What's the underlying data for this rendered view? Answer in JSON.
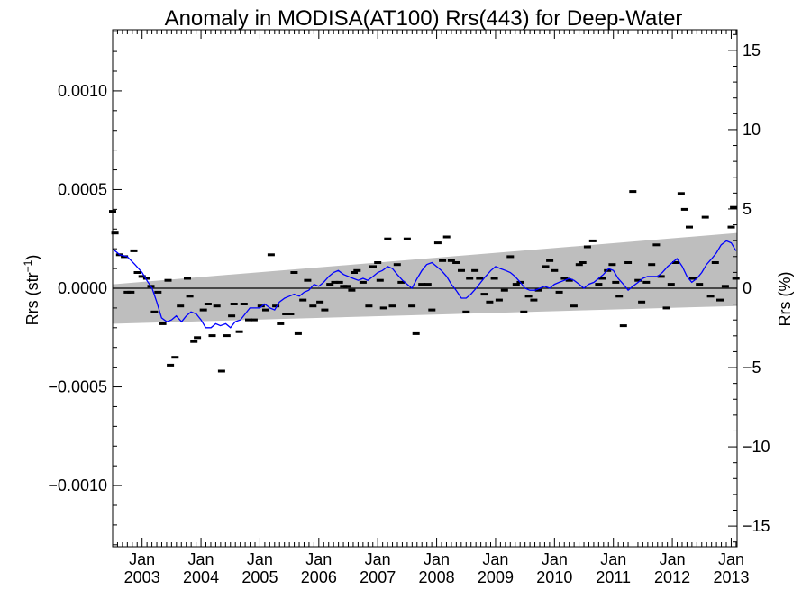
{
  "chart_data": {
    "type": "scatter",
    "title": "Anomaly in MODISA(AT100) Rrs(443) for Deep-Water",
    "ylabel": "Rrs (str⁻¹)",
    "ylabel_base": "Rrs (str",
    "ylabel_sup": "−1",
    "ylabel_end": ")",
    "y2label": "Rrs (%)",
    "xlim": [
      2002.5,
      2013.1
    ],
    "ylim": [
      -0.00131,
      0.00131
    ],
    "y2lim": [
      -16.3,
      16.3
    ],
    "yticks": [
      {
        "value": 0.001,
        "label": "0.0010"
      },
      {
        "value": 0.0005,
        "label": "0.0005"
      },
      {
        "value": 0.0,
        "label": "0.0000"
      },
      {
        "value": -0.0005,
        "label": "−0.0005"
      },
      {
        "value": -0.001,
        "label": "−0.0010"
      }
    ],
    "y2ticks": [
      {
        "value": 15,
        "label": "15"
      },
      {
        "value": 10,
        "label": "10"
      },
      {
        "value": 5,
        "label": "5"
      },
      {
        "value": 0,
        "label": "0"
      },
      {
        "value": -5,
        "label": "−5"
      },
      {
        "value": -10,
        "label": "−10"
      },
      {
        "value": -15,
        "label": "−15"
      }
    ],
    "xticks": [
      {
        "value": 2003.0,
        "month": "Jan",
        "year": "2003"
      },
      {
        "value": 2004.0,
        "month": "Jan",
        "year": "2004"
      },
      {
        "value": 2005.0,
        "month": "Jan",
        "year": "2005"
      },
      {
        "value": 2006.0,
        "month": "Jan",
        "year": "2006"
      },
      {
        "value": 2007.0,
        "month": "Jan",
        "year": "2007"
      },
      {
        "value": 2008.0,
        "month": "Jan",
        "year": "2008"
      },
      {
        "value": 2009.0,
        "month": "Jan",
        "year": "2009"
      },
      {
        "value": 2010.0,
        "month": "Jan",
        "year": "2010"
      },
      {
        "value": 2011.0,
        "month": "Jan",
        "year": "2011"
      },
      {
        "value": 2012.0,
        "month": "Jan",
        "year": "2012"
      },
      {
        "value": 2013.0,
        "month": "Jan",
        "year": "2013"
      }
    ],
    "band": {
      "x": [
        2002.5,
        2013.1
      ],
      "upper": [
        2e-05,
        0.00028
      ],
      "lower": [
        -0.00018,
        -9e-05
      ]
    },
    "zero_line": 0,
    "points": [
      [
        2002.5,
        0.00039
      ],
      [
        2002.54,
        0.00028
      ],
      [
        2002.62,
        0.00017
      ],
      [
        2002.7,
        0.00016
      ],
      [
        2002.75,
        -2e-05
      ],
      [
        2002.81,
        -2e-05
      ],
      [
        2002.86,
        0.00019
      ],
      [
        2002.92,
        8e-05
      ],
      [
        2003.0,
        6e-05
      ],
      [
        2003.08,
        5e-05
      ],
      [
        2003.15,
        1e-05
      ],
      [
        2003.21,
        -0.00012
      ],
      [
        2003.27,
        -2e-05
      ],
      [
        2003.35,
        -0.00018
      ],
      [
        2003.44,
        4e-05
      ],
      [
        2003.48,
        -0.00039
      ],
      [
        2003.56,
        -0.00035
      ],
      [
        2003.65,
        -9e-05
      ],
      [
        2003.77,
        5e-05
      ],
      [
        2003.81,
        -4e-05
      ],
      [
        2003.88,
        -0.00027
      ],
      [
        2003.94,
        -0.00025
      ],
      [
        2004.04,
        -0.00011
      ],
      [
        2004.12,
        -8e-05
      ],
      [
        2004.19,
        -0.00024
      ],
      [
        2004.27,
        -9e-05
      ],
      [
        2004.35,
        -0.00042
      ],
      [
        2004.44,
        -0.00024
      ],
      [
        2004.52,
        -0.00014
      ],
      [
        2004.56,
        -8e-05
      ],
      [
        2004.65,
        -0.00022
      ],
      [
        2004.73,
        -8e-05
      ],
      [
        2004.81,
        -0.00016
      ],
      [
        2004.9,
        -0.00016
      ],
      [
        2005.02,
        -9e-05
      ],
      [
        2005.1,
        -0.00011
      ],
      [
        2005.19,
        0.00017
      ],
      [
        2005.27,
        -9e-05
      ],
      [
        2005.35,
        -0.00018
      ],
      [
        2005.44,
        -0.00013
      ],
      [
        2005.52,
        -0.00013
      ],
      [
        2005.58,
        8e-05
      ],
      [
        2005.65,
        -0.00023
      ],
      [
        2005.73,
        -6e-05
      ],
      [
        2005.81,
        4e-05
      ],
      [
        2005.9,
        -9e-05
      ],
      [
        2006.02,
        -7e-05
      ],
      [
        2006.1,
        -0.00011
      ],
      [
        2006.19,
        2e-05
      ],
      [
        2006.27,
        3e-05
      ],
      [
        2006.35,
        3e-05
      ],
      [
        2006.42,
        1e-05
      ],
      [
        2006.48,
        1e-05
      ],
      [
        2006.56,
        -1e-05
      ],
      [
        2006.6,
        8e-05
      ],
      [
        2006.65,
        9e-05
      ],
      [
        2006.75,
        3e-05
      ],
      [
        2006.85,
        -9e-05
      ],
      [
        2006.92,
        0.00011
      ],
      [
        2007.0,
        0.00013
      ],
      [
        2007.04,
        4e-05
      ],
      [
        2007.1,
        -0.0001
      ],
      [
        2007.17,
        0.00025
      ],
      [
        2007.25,
        -9e-05
      ],
      [
        2007.33,
        0.00012
      ],
      [
        2007.4,
        3e-05
      ],
      [
        2007.5,
        0.00025
      ],
      [
        2007.58,
        -9e-05
      ],
      [
        2007.65,
        -0.00023
      ],
      [
        2007.75,
        2e-05
      ],
      [
        2007.85,
        2e-05
      ],
      [
        2007.92,
        -0.00011
      ],
      [
        2008.02,
        0.00023
      ],
      [
        2008.1,
        0.00014
      ],
      [
        2008.17,
        0.00026
      ],
      [
        2008.25,
        0.00014
      ],
      [
        2008.33,
        0.00013
      ],
      [
        2008.42,
        9e-05
      ],
      [
        2008.5,
        -0.00012
      ],
      [
        2008.56,
        5e-05
      ],
      [
        2008.65,
        9e-05
      ],
      [
        2008.73,
        5e-05
      ],
      [
        2008.81,
        -3e-05
      ],
      [
        2008.9,
        -7e-05
      ],
      [
        2008.98,
        5e-05
      ],
      [
        2009.06,
        -6e-05
      ],
      [
        2009.15,
        -1e-05
      ],
      [
        2009.25,
        0.00016
      ],
      [
        2009.35,
        2e-05
      ],
      [
        2009.42,
        3e-05
      ],
      [
        2009.48,
        -0.00012
      ],
      [
        2009.56,
        -4e-05
      ],
      [
        2009.65,
        -6e-05
      ],
      [
        2009.73,
        -1e-05
      ],
      [
        2009.85,
        0.00011
      ],
      [
        2009.92,
        0.00014
      ],
      [
        2010.0,
        9e-05
      ],
      [
        2010.08,
        -2e-05
      ],
      [
        2010.17,
        5e-05
      ],
      [
        2010.25,
        4e-05
      ],
      [
        2010.33,
        -9e-05
      ],
      [
        2010.42,
        0.00012
      ],
      [
        2010.48,
        0.00013
      ],
      [
        2010.56,
        0.00021
      ],
      [
        2010.65,
        0.00024
      ],
      [
        2010.75,
        2e-05
      ],
      [
        2010.81,
        5e-05
      ],
      [
        2010.9,
        9e-05
      ],
      [
        2010.98,
        0.00012
      ],
      [
        2011.04,
        3e-05
      ],
      [
        2011.1,
        -4e-05
      ],
      [
        2011.17,
        -0.00019
      ],
      [
        2011.25,
        0.00013
      ],
      [
        2011.33,
        0.00049
      ],
      [
        2011.42,
        4e-05
      ],
      [
        2011.48,
        -7e-05
      ],
      [
        2011.56,
        3e-05
      ],
      [
        2011.65,
        0.00012
      ],
      [
        2011.73,
        0.00022
      ],
      [
        2011.81,
        6e-05
      ],
      [
        2011.9,
        -0.0001
      ],
      [
        2011.98,
        2e-05
      ],
      [
        2012.06,
        0.00013
      ],
      [
        2012.15,
        0.00048
      ],
      [
        2012.21,
        0.0004
      ],
      [
        2012.29,
        0.00031
      ],
      [
        2012.35,
        5e-05
      ],
      [
        2012.46,
        2e-05
      ],
      [
        2012.56,
        0.00036
      ],
      [
        2012.65,
        -4e-05
      ],
      [
        2012.73,
        0.00013
      ],
      [
        2012.81,
        -6e-05
      ],
      [
        2012.9,
        1e-05
      ],
      [
        2013.0,
        0.00031
      ],
      [
        2013.04,
        0.00041
      ],
      [
        2013.08,
        5e-05
      ]
    ],
    "smooth": {
      "x": [
        2002.5,
        2002.62,
        2002.75,
        2002.88,
        2003.0,
        2003.08,
        2003.17,
        2003.25,
        2003.33,
        2003.42,
        2003.5,
        2003.58,
        2003.67,
        2003.75,
        2003.83,
        2003.92,
        2004.0,
        2004.08,
        2004.17,
        2004.25,
        2004.33,
        2004.42,
        2004.5,
        2004.58,
        2004.67,
        2004.75,
        2004.83,
        2004.92,
        2005.0,
        2005.08,
        2005.17,
        2005.25,
        2005.33,
        2005.42,
        2005.5,
        2005.58,
        2005.67,
        2005.75,
        2005.83,
        2005.92,
        2006.0,
        2006.08,
        2006.17,
        2006.25,
        2006.33,
        2006.42,
        2006.5,
        2006.58,
        2006.67,
        2006.75,
        2006.83,
        2006.92,
        2007.0,
        2007.08,
        2007.17,
        2007.25,
        2007.33,
        2007.42,
        2007.5,
        2007.58,
        2007.67,
        2007.75,
        2007.83,
        2007.92,
        2008.0,
        2008.08,
        2008.17,
        2008.25,
        2008.33,
        2008.42,
        2008.5,
        2008.58,
        2008.67,
        2008.75,
        2008.83,
        2008.92,
        2009.0,
        2009.08,
        2009.17,
        2009.25,
        2009.33,
        2009.42,
        2009.5,
        2009.58,
        2009.67,
        2009.75,
        2009.83,
        2009.92,
        2010.0,
        2010.08,
        2010.17,
        2010.25,
        2010.33,
        2010.42,
        2010.5,
        2010.58,
        2010.67,
        2010.75,
        2010.83,
        2010.92,
        2011.0,
        2011.08,
        2011.17,
        2011.25,
        2011.33,
        2011.42,
        2011.5,
        2011.58,
        2011.67,
        2011.75,
        2011.83,
        2011.92,
        2012.0,
        2012.08,
        2012.17,
        2012.25,
        2012.33,
        2012.42,
        2012.5,
        2012.58,
        2012.67,
        2012.75,
        2012.83,
        2012.92,
        2013.0,
        2013.08
      ],
      "y": [
        0.0002,
        0.00017,
        0.00016,
        0.00012,
        8e-05,
        4e-05,
        0.0,
        -7e-05,
        -0.00015,
        -0.00017,
        -0.00016,
        -0.00014,
        -0.00017,
        -0.00014,
        -0.00012,
        -0.00013,
        -0.00016,
        -0.0002,
        -0.0002,
        -0.00018,
        -0.00019,
        -0.00018,
        -0.0002,
        -0.00017,
        -0.00016,
        -0.00013,
        -0.0001,
        -0.0001,
        -0.0001,
        -8e-05,
        -0.0001,
        -0.00011,
        -7e-05,
        -5e-05,
        -4e-05,
        -3e-05,
        -4e-05,
        -2e-05,
        -1e-05,
        2e-05,
        1e-05,
        3e-05,
        6e-05,
        8e-05,
        9e-05,
        7e-05,
        6e-05,
        5e-05,
        4e-05,
        5e-05,
        4e-05,
        6e-05,
        8e-05,
        9e-05,
        0.00011,
        0.0001,
        7e-05,
        4e-05,
        2e-05,
        0.0,
        5e-05,
        9e-05,
        0.00012,
        0.00013,
        0.00011,
        9e-05,
        6e-05,
        2e-05,
        -1e-05,
        -5e-05,
        -5e-05,
        -3e-05,
        0.0,
        3e-05,
        6e-05,
        9e-05,
        0.00011,
        0.0001,
        9e-05,
        8e-05,
        6e-05,
        3e-05,
        0.0,
        -1e-05,
        -1e-05,
        0.0,
        1e-05,
        0.0,
        2e-05,
        3e-05,
        4e-05,
        5e-05,
        4e-05,
        2e-05,
        0.0,
        2e-05,
        3e-05,
        5e-05,
        7e-05,
        0.0001,
        9e-05,
        5e-05,
        2e-05,
        -1e-05,
        1e-05,
        3e-05,
        5e-05,
        6e-05,
        6e-05,
        6e-05,
        8e-05,
        0.00011,
        0.00013,
        0.00015,
        0.00011,
        6e-05,
        3e-05,
        5e-05,
        8e-05,
        0.00012,
        0.00015,
        0.00018,
        0.00022,
        0.00024,
        0.00023,
        0.00019
      ]
    }
  }
}
